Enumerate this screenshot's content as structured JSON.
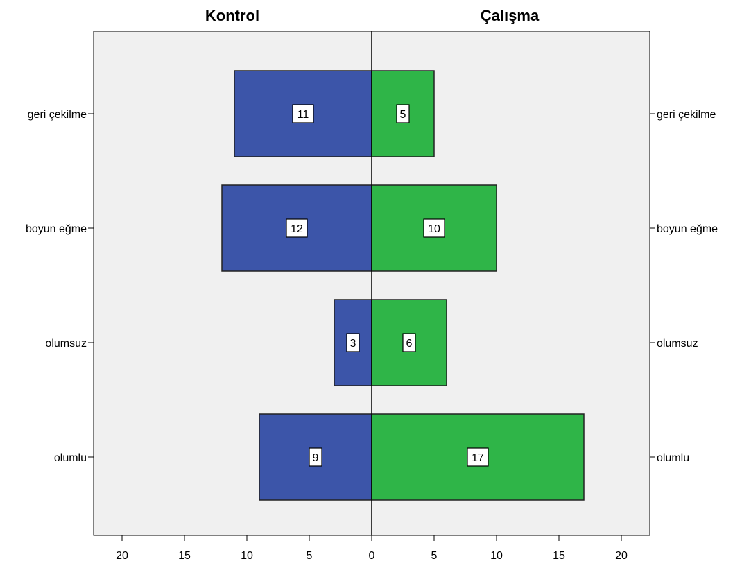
{
  "chart_data": {
    "type": "bar",
    "orientation": "horizontal",
    "layout": "population-pyramid",
    "categories": [
      "geri çekilme",
      "boyun eğme",
      "olumsuz",
      "olumlu"
    ],
    "series": [
      {
        "name": "Kontrol",
        "side": "left",
        "color": "#3c55a9",
        "values": [
          11,
          12,
          3,
          9
        ]
      },
      {
        "name": "Çalışma",
        "side": "right",
        "color": "#2fb548",
        "values": [
          5,
          10,
          6,
          17
        ]
      }
    ],
    "xlim": [
      0,
      22
    ],
    "x_ticks": [
      20,
      15,
      10,
      5,
      0,
      5,
      10,
      15,
      20
    ],
    "grid": false,
    "background_color": "#f0f0f0",
    "data_labels": true
  }
}
